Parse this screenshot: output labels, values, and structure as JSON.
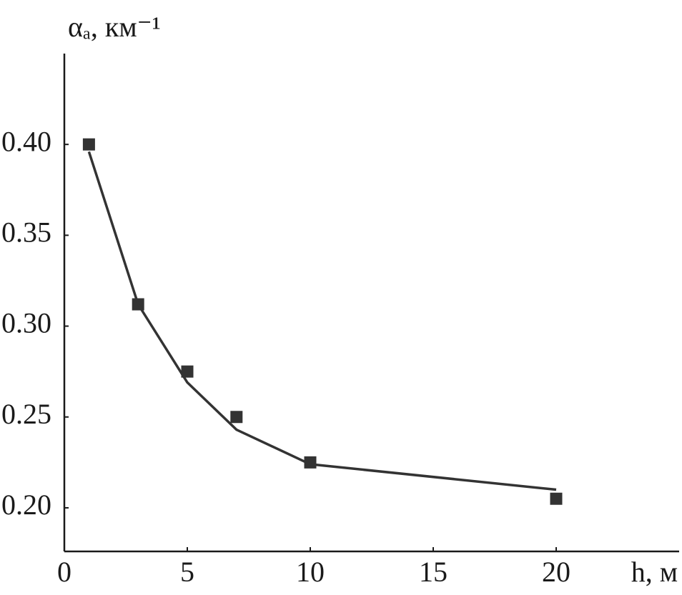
{
  "chart_data": {
    "type": "scatter",
    "ylabel": "αₐ, км⁻¹",
    "xlabel": "h, м",
    "x": [
      1,
      3,
      5,
      7,
      10,
      20
    ],
    "series": [
      {
        "type": "scatter",
        "color": "#333333",
        "values": [
          0.4,
          0.312,
          0.275,
          0.25,
          0.225,
          0.205
        ]
      },
      {
        "type": "line",
        "color": "#333333",
        "values": [
          0.396,
          0.312,
          0.269,
          0.243,
          0.224,
          0.21
        ]
      }
    ],
    "xlim": [
      0,
      25
    ],
    "ylim": [
      0.176,
      0.45
    ],
    "xticks": [
      0,
      5,
      10,
      15,
      20
    ],
    "yticks": [
      {
        "value": 0.4,
        "label": "0.40"
      },
      0.35,
      {
        "value": 0.3,
        "label": "0.30"
      },
      0.25,
      {
        "value": 0.2,
        "label": "0.20"
      }
    ],
    "grid": false
  }
}
